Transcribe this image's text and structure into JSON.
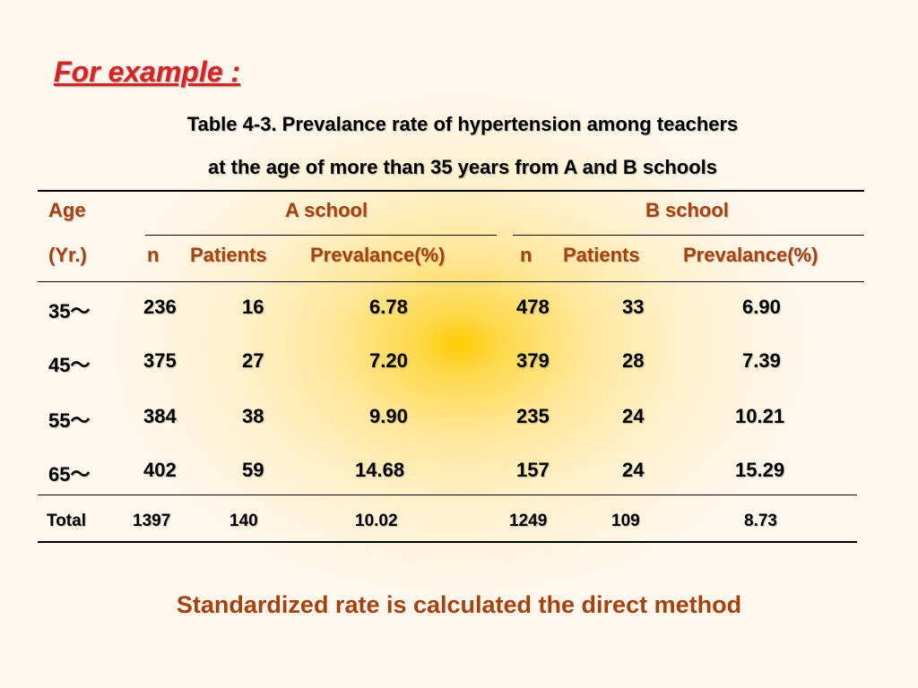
{
  "heading": "For example :",
  "caption_line1": "Table 4-3. Prevalance rate of hypertension among teachers",
  "caption_line2": "at the age of more than 35 years from A and B schools",
  "header": {
    "age": "Age",
    "yr": "(Yr.)",
    "a_school": "A school",
    "b_school": "B school",
    "n": "n",
    "patients": "Patients",
    "prevalance": "Prevalance(%)"
  },
  "rows": [
    {
      "age": "35～",
      "a_n": "236",
      "a_patients": "16",
      "a_prev": "6.78",
      "b_n": "478",
      "b_patients": "33",
      "b_prev": "6.90"
    },
    {
      "age": "45～",
      "a_n": "375",
      "a_patients": "27",
      "a_prev": "7.20",
      "b_n": "379",
      "b_patients": "28",
      "b_prev": "7.39"
    },
    {
      "age": "55～",
      "a_n": "384",
      "a_patients": "38",
      "a_prev": "9.90",
      "b_n": "235",
      "b_patients": "24",
      "b_prev": "10.21"
    },
    {
      "age": "65～",
      "a_n": "402",
      "a_patients": "59",
      "a_prev": "14.68",
      "b_n": "157",
      "b_patients": "24",
      "b_prev": "15.29"
    }
  ],
  "total": {
    "label": "Total",
    "a_n": "1397",
    "a_patients": "140",
    "a_prev": "10.02",
    "b_n": "1249",
    "b_patients": "109",
    "b_prev": "8.73"
  },
  "footer": "Standardized rate is calculated the direct method"
}
